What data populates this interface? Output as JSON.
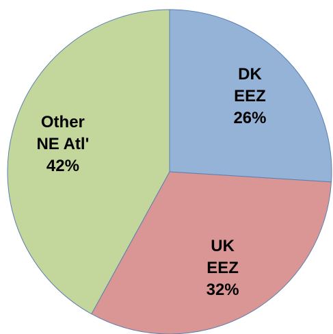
{
  "chart_data": {
    "type": "pie",
    "categories": [
      "DK\nEEZ",
      "UK\nEEZ",
      "Other\nNE Atl'"
    ],
    "values": [
      26,
      32,
      42
    ],
    "value_labels": [
      "26%",
      "32%",
      "42%"
    ],
    "colors": [
      "#95b3d7",
      "#d99694",
      "#c3d69b"
    ]
  }
}
